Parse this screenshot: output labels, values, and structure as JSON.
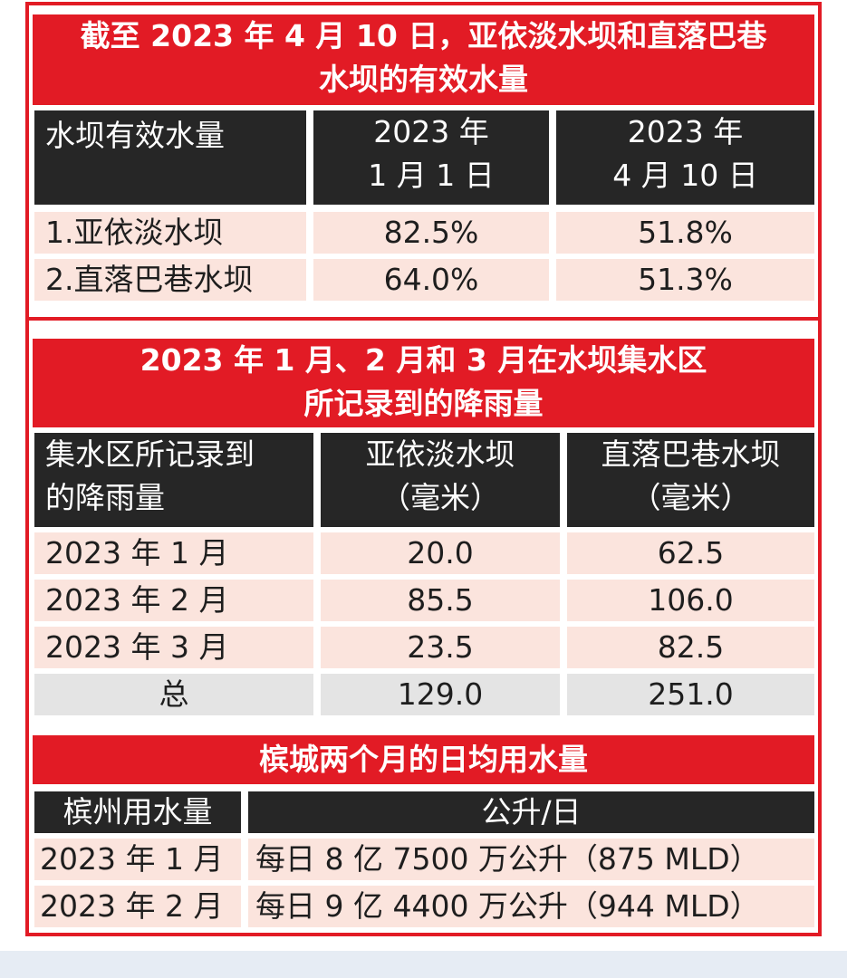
{
  "table1": {
    "title_line1": "截至 2023 年 4 月 10 日，亚依淡水坝和直落巴巷",
    "title_line2": "水坝的有效水量",
    "headers": {
      "col1": "水坝有效水量",
      "col2_line1": "2023 年",
      "col2_line2": "1 月 1 日",
      "col3_line1": "2023 年",
      "col3_line2": "4 月 10 日"
    },
    "rows": [
      {
        "name": "1.亚依淡水坝",
        "jan": "82.5%",
        "apr": "51.8%"
      },
      {
        "name": "2.直落巴巷水坝",
        "jan": "64.0%",
        "apr": "51.3%"
      }
    ]
  },
  "table2": {
    "title_line1": "2023 年 1 月、2 月和 3 月在水坝集水区",
    "title_line2": "所记录到的降雨量",
    "headers": {
      "col1_line1": "集水区所记录到",
      "col1_line2": "的降雨量",
      "col2_line1": "亚依淡水坝",
      "col2_line2": "（毫米）",
      "col3_line1": "直落巴巷水坝",
      "col3_line2": "（毫米）"
    },
    "rows": [
      {
        "month": "2023 年 1 月",
        "ayer_itam": "20.0",
        "teluk_bahang": "62.5"
      },
      {
        "month": "2023 年 2 月",
        "ayer_itam": "85.5",
        "teluk_bahang": "106.0"
      },
      {
        "month": "2023 年 3 月",
        "ayer_itam": "23.5",
        "teluk_bahang": "82.5"
      }
    ],
    "total": {
      "label": "总",
      "ayer_itam": "129.0",
      "teluk_bahang": "251.0"
    }
  },
  "table3": {
    "title": "槟城两个月的日均用水量",
    "headers": {
      "col1": "槟州用水量",
      "col2": "公升/日"
    },
    "rows": [
      {
        "month": "2023 年 1 月",
        "usage": "每日 8 亿 7500 万公升（875 MLD）"
      },
      {
        "month": "2023 年 2 月",
        "usage": "每日 9 亿 4400 万公升（944 MLD）"
      }
    ]
  },
  "colors": {
    "accent_red": "#e21b25",
    "header_dark": "#262626",
    "row_pink": "#fbe4dd",
    "row_grey": "#e4e4e4"
  }
}
